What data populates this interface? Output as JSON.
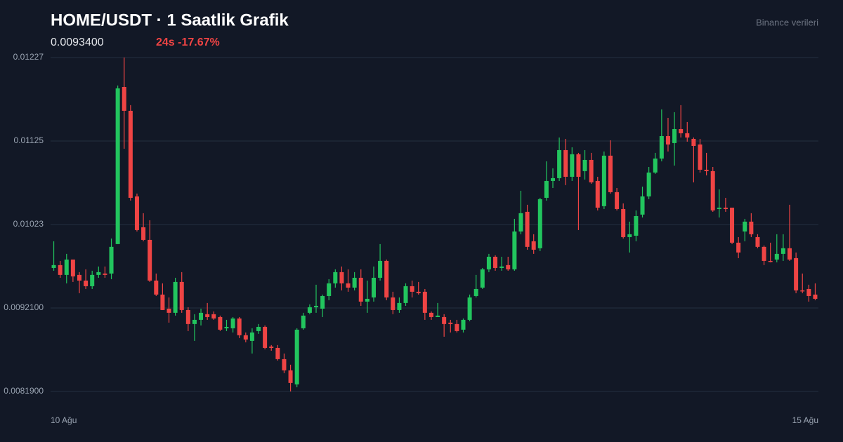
{
  "chart_data": {
    "type": "candlestick",
    "title": "HOME/USDT · 1 Saatlik Grafik",
    "price": "0.0093400",
    "change": "24s -17.67%",
    "source": "Binance verileri",
    "up_color": "#22c55e",
    "down_color": "#ef4444",
    "grid": true,
    "ylim": [
      0.00819,
      0.01227
    ],
    "yticks": [
      0.01227,
      0.01125,
      0.01023,
      {
        "value": 0.00921,
        "label": "0.0092100"
      },
      {
        "value": 0.00819,
        "label": "0.0081900"
      }
    ],
    "categories": [
      "10 Ağu",
      null,
      null,
      null,
      null,
      null,
      null,
      null,
      null,
      null,
      null,
      null,
      null,
      null,
      null,
      null,
      null,
      null,
      null,
      null,
      null,
      null,
      null,
      null,
      null,
      null,
      null,
      null,
      null,
      null,
      null,
      null,
      null,
      null,
      null,
      null,
      null,
      null,
      null,
      null,
      null,
      null,
      null,
      null,
      null,
      null,
      null,
      null,
      null,
      null,
      null,
      null,
      null,
      null,
      null,
      null,
      null,
      null,
      null,
      null,
      null,
      null,
      null,
      null,
      null,
      null,
      null,
      null,
      null,
      null,
      null,
      null,
      null,
      null,
      null,
      null,
      null,
      null,
      null,
      null,
      null,
      null,
      null,
      null,
      null,
      null,
      null,
      null,
      null,
      null,
      null,
      null,
      null,
      null,
      null,
      null,
      null,
      null,
      null,
      null,
      null,
      null,
      null,
      null,
      null,
      null,
      null,
      null,
      null,
      null,
      null,
      null,
      null,
      null,
      null,
      null,
      null,
      null,
      null,
      "15 Ağu"
    ],
    "candles": [
      [
        0.009699,
        0.010025,
        0.009665,
        0.009734
      ],
      [
        0.009734,
        0.009785,
        0.009579,
        0.009614
      ],
      [
        0.009614,
        0.009871,
        0.009511,
        0.009802
      ],
      [
        0.009802,
        0.009802,
        0.009528,
        0.009596
      ],
      [
        0.009614,
        0.009648,
        0.009391,
        0.009545
      ],
      [
        0.009545,
        0.009682,
        0.009442,
        0.009476
      ],
      [
        0.009476,
        0.009665,
        0.009442,
        0.009614
      ],
      [
        0.009614,
        0.009717,
        0.009579,
        0.009648
      ],
      [
        0.009631,
        0.009717,
        0.009579,
        0.009614
      ],
      [
        0.009631,
        0.010059,
        0.009562,
        0.009957
      ],
      [
        0.009991,
        0.011928,
        0.009991,
        0.011893
      ],
      [
        0.01191,
        0.01227,
        0.011156,
        0.011619
      ],
      [
        0.011619,
        0.011688,
        0.010522,
        0.010556
      ],
      [
        0.010573,
        0.010608,
        0.010145,
        0.010162
      ],
      [
        0.010196,
        0.010368,
        0.010025,
        0.010042
      ],
      [
        0.010042,
        0.010282,
        0.009528,
        0.009545
      ],
      [
        0.009545,
        0.009631,
        0.009356,
        0.009374
      ],
      [
        0.009374,
        0.009511,
        0.009185,
        0.009185
      ],
      [
        0.009202,
        0.009339,
        0.009031,
        0.009151
      ],
      [
        0.009151,
        0.009579,
        0.009117,
        0.009528
      ],
      [
        0.009528,
        0.009648,
        0.009151,
        0.009185
      ],
      [
        0.009185,
        0.009219,
        0.008928,
        0.009014
      ],
      [
        0.009014,
        0.009134,
        0.008808,
        0.009065
      ],
      [
        0.009065,
        0.009202,
        0.008997,
        0.009151
      ],
      [
        0.009134,
        0.009271,
        0.009065,
        0.009099
      ],
      [
        0.009134,
        0.009168,
        0.009065,
        0.009082
      ],
      [
        0.009099,
        0.009117,
        0.008928,
        0.008945
      ],
      [
        0.008962,
        0.009065,
        0.008928,
        0.008979
      ],
      [
        0.008962,
        0.009099,
        0.008911,
        0.009082
      ],
      [
        0.009082,
        0.009099,
        0.008842,
        0.008877
      ],
      [
        0.008877,
        0.008911,
        0.008791,
        0.008825
      ],
      [
        0.008808,
        0.008962,
        0.008654,
        0.008911
      ],
      [
        0.008928,
        0.009014,
        0.008894,
        0.008979
      ],
      [
        0.008979,
        0.008997,
        0.008705,
        0.008722
      ],
      [
        0.008739,
        0.008757,
        0.008688,
        0.008722
      ],
      [
        0.008722,
        0.008757,
        0.008568,
        0.008585
      ],
      [
        0.008585,
        0.008654,
        0.008414,
        0.008448
      ],
      [
        0.008448,
        0.008517,
        0.008191,
        0.008294
      ],
      [
        0.008277,
        0.008962,
        0.008242,
        0.008945
      ],
      [
        0.008962,
        0.009151,
        0.008945,
        0.009117
      ],
      [
        0.009151,
        0.009254,
        0.009134,
        0.009219
      ],
      [
        0.009219,
        0.009494,
        0.009151,
        0.009236
      ],
      [
        0.009202,
        0.009374,
        0.009099,
        0.009356
      ],
      [
        0.009356,
        0.009562,
        0.009305,
        0.009511
      ],
      [
        0.009511,
        0.009682,
        0.009459,
        0.009648
      ],
      [
        0.009648,
        0.009717,
        0.009425,
        0.009511
      ],
      [
        0.009511,
        0.009682,
        0.009408,
        0.009459
      ],
      [
        0.009459,
        0.009648,
        0.009425,
        0.009579
      ],
      [
        0.009579,
        0.009682,
        0.009236,
        0.009288
      ],
      [
        0.009288,
        0.009545,
        0.009151,
        0.009322
      ],
      [
        0.009339,
        0.009717,
        0.009288,
        0.009579
      ],
      [
        0.009579,
        0.009991,
        0.009545,
        0.009785
      ],
      [
        0.009785,
        0.009802,
        0.009305,
        0.009339
      ],
      [
        0.009339,
        0.009408,
        0.009134,
        0.009185
      ],
      [
        0.009185,
        0.009339,
        0.009151,
        0.009271
      ],
      [
        0.009271,
        0.009511,
        0.009236,
        0.009476
      ],
      [
        0.009476,
        0.009545,
        0.009339,
        0.009408
      ],
      [
        0.009408,
        0.009528,
        0.009374,
        0.009391
      ],
      [
        0.009408,
        0.009442,
        0.009065,
        0.009151
      ],
      [
        0.009151,
        0.009168,
        0.009065,
        0.009099
      ],
      [
        0.009099,
        0.009271,
        0.009099,
        0.009117
      ],
      [
        0.009099,
        0.009134,
        0.008859,
        0.009014
      ],
      [
        0.009031,
        0.009065,
        0.008911,
        0.009014
      ],
      [
        0.009014,
        0.009065,
        0.008911,
        0.008928
      ],
      [
        0.008945,
        0.009082,
        0.008911,
        0.009065
      ],
      [
        0.009065,
        0.009374,
        0.009048,
        0.009339
      ],
      [
        0.009356,
        0.009614,
        0.009339,
        0.009442
      ],
      [
        0.009459,
        0.009699,
        0.009442,
        0.009682
      ],
      [
        0.009682,
        0.009871,
        0.009648,
        0.009836
      ],
      [
        0.009836,
        0.009854,
        0.009665,
        0.009699
      ],
      [
        0.009699,
        0.009836,
        0.009665,
        0.009717
      ],
      [
        0.009734,
        0.009836,
        0.009665,
        0.009682
      ],
      [
        0.009682,
        0.010299,
        0.009665,
        0.010145
      ],
      [
        0.010145,
        0.010642,
        0.010111,
        0.010368
      ],
      [
        0.010385,
        0.010471,
        0.009922,
        0.009957
      ],
      [
        0.010025,
        0.010111,
        0.009871,
        0.009922
      ],
      [
        0.00994,
        0.010556,
        0.009905,
        0.010539
      ],
      [
        0.010556,
        0.011002,
        0.010522,
        0.010762
      ],
      [
        0.010762,
        0.010916,
        0.010676,
        0.010796
      ],
      [
        0.010796,
        0.011293,
        0.010762,
        0.011139
      ],
      [
        0.011139,
        0.011276,
        0.010711,
        0.010813
      ],
      [
        0.010813,
        0.011173,
        0.010762,
        0.011088
      ],
      [
        0.011088,
        0.011105,
        0.010162,
        0.010813
      ],
      [
        0.010882,
        0.011139,
        0.010779,
        0.011019
      ],
      [
        0.011019,
        0.011105,
        0.010728,
        0.010745
      ],
      [
        0.010762,
        0.010813,
        0.010402,
        0.010436
      ],
      [
        0.010454,
        0.011122,
        0.010419,
        0.011071
      ],
      [
        0.011071,
        0.011259,
        0.010608,
        0.010625
      ],
      [
        0.010625,
        0.010676,
        0.010402,
        0.010419
      ],
      [
        0.010419,
        0.010488,
        0.010059,
        0.010076
      ],
      [
        0.010076,
        0.010265,
        0.009888,
        0.010111
      ],
      [
        0.010093,
        0.010402,
        0.010025,
        0.010333
      ],
      [
        0.010351,
        0.010693,
        0.010316,
        0.010573
      ],
      [
        0.010573,
        0.010933,
        0.010539,
        0.010865
      ],
      [
        0.010865,
        0.011105,
        0.010848,
        0.011036
      ],
      [
        0.011036,
        0.011636,
        0.011002,
        0.01131
      ],
      [
        0.01131,
        0.011533,
        0.011122,
        0.011208
      ],
      [
        0.011225,
        0.011602,
        0.01095,
        0.011396
      ],
      [
        0.011396,
        0.011688,
        0.011293,
        0.011345
      ],
      [
        0.011345,
        0.011482,
        0.011242,
        0.011293
      ],
      [
        0.011276,
        0.011293,
        0.010745,
        0.01119
      ],
      [
        0.011208,
        0.011276,
        0.010865,
        0.010899
      ],
      [
        0.010899,
        0.011105,
        0.01083,
        0.010882
      ],
      [
        0.010882,
        0.010933,
        0.010385,
        0.010402
      ],
      [
        0.010419,
        0.010659,
        0.010316,
        0.010436
      ],
      [
        0.010436,
        0.010556,
        0.010385,
        0.010419
      ],
      [
        0.010436,
        0.010436,
        0.009991,
        0.010008
      ],
      [
        0.010008,
        0.010076,
        0.009819,
        0.009888
      ],
      [
        0.010145,
        0.010299,
        0.010025,
        0.010265
      ],
      [
        0.010265,
        0.010368,
        0.010076,
        0.010111
      ],
      [
        0.010076,
        0.010111,
        0.00994,
        0.009957
      ],
      [
        0.009957,
        0.009974,
        0.009734,
        0.009785
      ],
      [
        0.009785,
        0.010008,
        0.009768,
        0.009785
      ],
      [
        0.009802,
        0.010111,
        0.009768,
        0.009871
      ],
      [
        0.009871,
        0.010111,
        0.009785,
        0.00994
      ],
      [
        0.00994,
        0.010471,
        0.009785,
        0.009802
      ],
      [
        0.009819,
        0.009888,
        0.009391,
        0.009425
      ],
      [
        0.009425,
        0.009631,
        0.009391,
        0.009425
      ],
      [
        0.009442,
        0.009494,
        0.009288,
        0.009356
      ],
      [
        0.009374,
        0.009511,
        0.009305,
        0.009322
      ]
    ]
  }
}
